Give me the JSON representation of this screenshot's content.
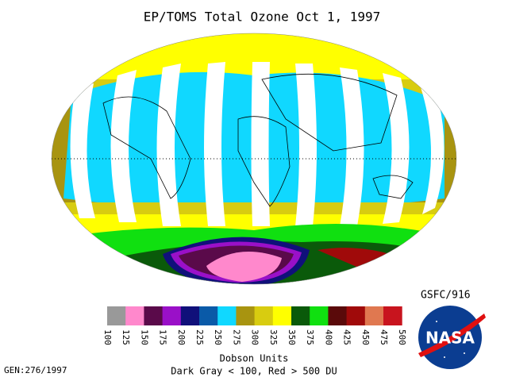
{
  "header": {
    "title": "EP/TOMS Total Ozone Oct  1, 1997",
    "org": "GSFC/916"
  },
  "colorbar": {
    "ticks": [
      100,
      125,
      150,
      175,
      200,
      225,
      250,
      275,
      300,
      325,
      350,
      375,
      400,
      425,
      450,
      475,
      500
    ],
    "colors": [
      "#999999",
      "#ff88cc",
      "#5a0a4a",
      "#9a10c8",
      "#10107a",
      "#0a5aa8",
      "#10d8ff",
      "#a89410",
      "#d8cc10",
      "#ffff00",
      "#0a5a0a",
      "#10e010",
      "#5a0a0a",
      "#a00a0a",
      "#e07850",
      "#c8141e"
    ],
    "unit": "Dobson Units",
    "note": "Dark Gray < 100, Red > 500 DU"
  },
  "footer": {
    "gen": "GEN:276/1997"
  },
  "logo": {
    "text": "NASA"
  }
}
